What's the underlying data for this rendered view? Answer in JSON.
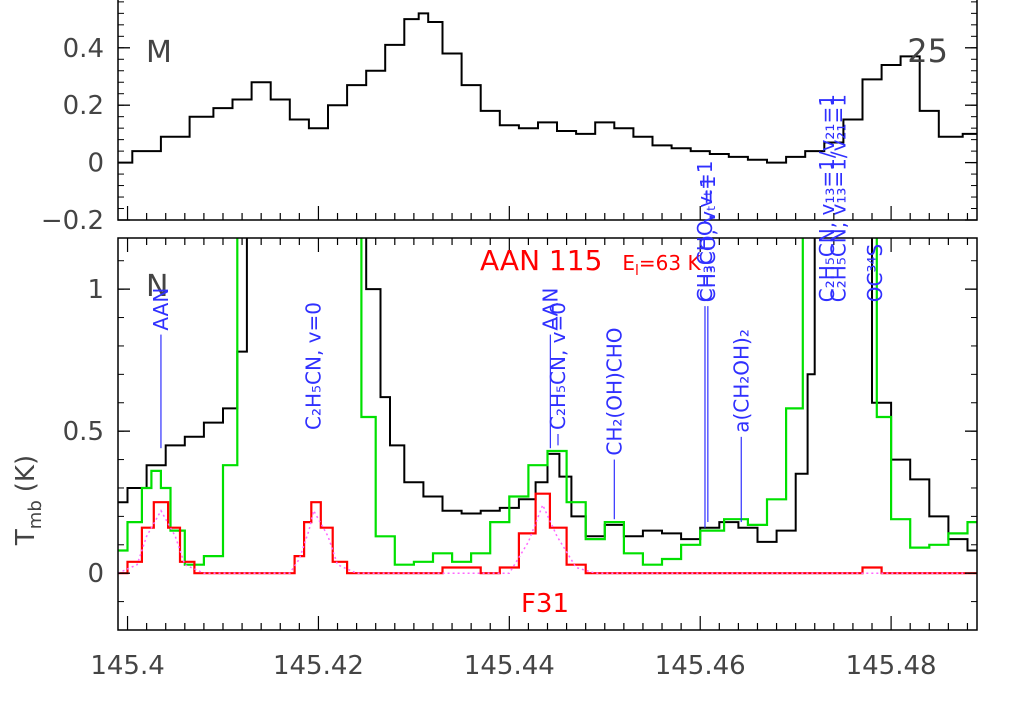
{
  "chart_data": [
    {
      "panel": "M",
      "type": "line",
      "panel_label": "M",
      "panel_number": "25",
      "xlim": [
        145.399,
        145.489
      ],
      "ylim": [
        -0.2,
        0.57
      ],
      "yticks": [
        -0.2,
        0,
        0.2,
        0.4
      ],
      "ytick_labels": [
        "−0.2",
        "0",
        "0.2",
        "0.4"
      ],
      "series": [
        {
          "color": "#000000",
          "style": "histogram",
          "points": [
            [
              145.399,
              0.0
            ],
            [
              145.402,
              0.04
            ],
            [
              145.405,
              0.09
            ],
            [
              145.408,
              0.16
            ],
            [
              145.41,
              0.19
            ],
            [
              145.412,
              0.22
            ],
            [
              145.414,
              0.28
            ],
            [
              145.416,
              0.22
            ],
            [
              145.418,
              0.15
            ],
            [
              145.42,
              0.12
            ],
            [
              145.422,
              0.2
            ],
            [
              145.424,
              0.27
            ],
            [
              145.426,
              0.32
            ],
            [
              145.428,
              0.41
            ],
            [
              145.43,
              0.5
            ],
            [
              145.431,
              0.52
            ],
            [
              145.432,
              0.49
            ],
            [
              145.434,
              0.38
            ],
            [
              145.436,
              0.27
            ],
            [
              145.438,
              0.18
            ],
            [
              145.44,
              0.13
            ],
            [
              145.442,
              0.12
            ],
            [
              145.444,
              0.14
            ],
            [
              145.446,
              0.11
            ],
            [
              145.448,
              0.1
            ],
            [
              145.45,
              0.14
            ],
            [
              145.452,
              0.12
            ],
            [
              145.454,
              0.09
            ],
            [
              145.456,
              0.06
            ],
            [
              145.458,
              0.05
            ],
            [
              145.46,
              0.04
            ],
            [
              145.462,
              0.03
            ],
            [
              145.464,
              0.02
            ],
            [
              145.466,
              0.01
            ],
            [
              145.468,
              0.0
            ],
            [
              145.47,
              0.02
            ],
            [
              145.472,
              0.04
            ],
            [
              145.474,
              0.07
            ],
            [
              145.476,
              0.15
            ],
            [
              145.478,
              0.29
            ],
            [
              145.48,
              0.34
            ],
            [
              145.482,
              0.37
            ],
            [
              145.484,
              0.18
            ],
            [
              145.486,
              0.09
            ],
            [
              145.489,
              0.1
            ]
          ]
        }
      ]
    },
    {
      "panel": "N",
      "type": "line",
      "panel_label": "N",
      "xlabel": "",
      "ylabel": "T",
      "ylabel_sub": "mb",
      "ylabel_unit": "(K)",
      "xlim": [
        145.399,
        145.489
      ],
      "ylim": [
        -0.2,
        1.18
      ],
      "xticks": [
        145.4,
        145.42,
        145.44,
        145.46,
        145.48
      ],
      "xtick_labels": [
        "145.4",
        "145.42",
        "145.44",
        "145.46",
        "145.48"
      ],
      "yticks": [
        0,
        0.5,
        1
      ],
      "ytick_labels": [
        "0",
        "0.5",
        "1"
      ],
      "title": "AAN  115",
      "title_sub": "E",
      "title_sub_sub": "l",
      "title_tail": "=63 K",
      "model_label": "F31",
      "series": [
        {
          "color": "#000000",
          "style": "histogram",
          "points": [
            [
              145.399,
              0.25
            ],
            [
              145.401,
              0.3
            ],
            [
              145.403,
              0.38
            ],
            [
              145.405,
              0.45
            ],
            [
              145.407,
              0.48
            ],
            [
              145.409,
              0.53
            ],
            [
              145.411,
              0.58
            ],
            [
              145.412,
              0.78
            ],
            [
              145.413,
              1.5
            ],
            [
              145.424,
              1.5
            ],
            [
              145.426,
              1.0
            ],
            [
              145.427,
              0.62
            ],
            [
              145.428,
              0.45
            ],
            [
              145.43,
              0.32
            ],
            [
              145.432,
              0.27
            ],
            [
              145.434,
              0.22
            ],
            [
              145.436,
              0.21
            ],
            [
              145.438,
              0.22
            ],
            [
              145.44,
              0.23
            ],
            [
              145.442,
              0.26
            ],
            [
              145.4435,
              0.32
            ],
            [
              145.4445,
              0.42
            ],
            [
              145.446,
              0.34
            ],
            [
              145.447,
              0.2
            ],
            [
              145.449,
              0.13
            ],
            [
              145.451,
              0.17
            ],
            [
              145.453,
              0.13
            ],
            [
              145.455,
              0.15
            ],
            [
              145.457,
              0.14
            ],
            [
              145.459,
              0.12
            ],
            [
              145.461,
              0.16
            ],
            [
              145.463,
              0.18
            ],
            [
              145.465,
              0.16
            ],
            [
              145.467,
              0.11
            ],
            [
              145.469,
              0.15
            ],
            [
              145.471,
              0.35
            ],
            [
              145.4715,
              0.7
            ],
            [
              145.4725,
              1.5
            ],
            [
              145.477,
              1.5
            ],
            [
              145.479,
              0.6
            ],
            [
              145.481,
              0.4
            ],
            [
              145.483,
              0.33
            ],
            [
              145.485,
              0.2
            ],
            [
              145.487,
              0.12
            ],
            [
              145.489,
              0.08
            ]
          ]
        },
        {
          "color": "#00e000",
          "style": "histogram",
          "points": [
            [
              145.399,
              0.08
            ],
            [
              145.401,
              0.18
            ],
            [
              145.402,
              0.3
            ],
            [
              145.403,
              0.36
            ],
            [
              145.404,
              0.3
            ],
            [
              145.405,
              0.15
            ],
            [
              145.407,
              0.03
            ],
            [
              145.409,
              0.06
            ],
            [
              145.411,
              0.38
            ],
            [
              145.412,
              1.5
            ],
            [
              145.424,
              1.5
            ],
            [
              145.425,
              0.55
            ],
            [
              145.427,
              0.13
            ],
            [
              145.429,
              0.03
            ],
            [
              145.431,
              0.04
            ],
            [
              145.433,
              0.07
            ],
            [
              145.435,
              0.04
            ],
            [
              145.437,
              0.07
            ],
            [
              145.439,
              0.18
            ],
            [
              145.441,
              0.27
            ],
            [
              145.443,
              0.38
            ],
            [
              145.445,
              0.43
            ],
            [
              145.447,
              0.25
            ],
            [
              145.449,
              0.12
            ],
            [
              145.451,
              0.18
            ],
            [
              145.453,
              0.07
            ],
            [
              145.455,
              0.03
            ],
            [
              145.457,
              0.05
            ],
            [
              145.459,
              0.1
            ],
            [
              145.461,
              0.15
            ],
            [
              145.464,
              0.19
            ],
            [
              145.466,
              0.17
            ],
            [
              145.468,
              0.26
            ],
            [
              145.47,
              0.58
            ],
            [
              145.4715,
              1.5
            ],
            [
              145.478,
              1.5
            ],
            [
              145.479,
              0.55
            ],
            [
              145.481,
              0.19
            ],
            [
              145.483,
              0.09
            ],
            [
              145.485,
              0.1
            ],
            [
              145.487,
              0.14
            ],
            [
              145.489,
              0.18
            ]
          ]
        },
        {
          "color": "#ff0000",
          "style": "histogram",
          "points": [
            [
              145.399,
              0.0
            ],
            [
              145.401,
              0.04
            ],
            [
              145.402,
              0.16
            ],
            [
              145.4035,
              0.25
            ],
            [
              145.405,
              0.16
            ],
            [
              145.406,
              0.04
            ],
            [
              145.408,
              0.0
            ],
            [
              145.417,
              0.0
            ],
            [
              145.418,
              0.06
            ],
            [
              145.419,
              0.18
            ],
            [
              145.4195,
              0.25
            ],
            [
              145.421,
              0.16
            ],
            [
              145.422,
              0.04
            ],
            [
              145.424,
              0.0
            ],
            [
              145.432,
              0.0
            ],
            [
              145.434,
              0.02
            ],
            [
              145.436,
              0.02
            ],
            [
              145.438,
              0.0
            ],
            [
              145.44,
              0.02
            ],
            [
              145.442,
              0.14
            ],
            [
              145.4435,
              0.28
            ],
            [
              145.445,
              0.16
            ],
            [
              145.447,
              0.03
            ],
            [
              145.449,
              0.0
            ],
            [
              145.476,
              0.0
            ],
            [
              145.478,
              0.02
            ],
            [
              145.48,
              0.0
            ],
            [
              145.489,
              0.0
            ]
          ]
        },
        {
          "color": "#ff66ff",
          "style": "dotted",
          "points": [
            [
              145.399,
              0.0
            ],
            [
              145.401,
              0.03
            ],
            [
              145.402,
              0.13
            ],
            [
              145.4035,
              0.22
            ],
            [
              145.405,
              0.13
            ],
            [
              145.406,
              0.03
            ],
            [
              145.408,
              0.0
            ],
            [
              145.417,
              0.0
            ],
            [
              145.418,
              0.05
            ],
            [
              145.419,
              0.15
            ],
            [
              145.4195,
              0.22
            ],
            [
              145.421,
              0.13
            ],
            [
              145.422,
              0.03
            ],
            [
              145.424,
              0.0
            ],
            [
              145.44,
              0.0
            ],
            [
              145.442,
              0.11
            ],
            [
              145.4435,
              0.24
            ],
            [
              145.445,
              0.13
            ],
            [
              145.447,
              0.02
            ],
            [
              145.449,
              0.0
            ],
            [
              145.489,
              0.0
            ]
          ]
        }
      ],
      "annotations": [
        {
          "text": "AAN",
          "x": 145.4035,
          "y_low": 0.44,
          "y_high": 0.84
        },
        {
          "text": "C₂H₅CN, v=0",
          "x": 145.4195,
          "y_low": null,
          "y_high": 0.49
        },
        {
          "text": "AAN",
          "x": 145.4443,
          "y_low": 0.44,
          "y_high": 0.84
        },
        {
          "text": "C₂H₅CN, v=0",
          "x": 145.4451,
          "y_low": 0.45,
          "y_high": 0.49
        },
        {
          "text": "CH₂(OH)CHO",
          "x": 145.451,
          "y_low": 0.19,
          "y_high": 0.4
        },
        {
          "text": "CH₃CHO, vₜ=1",
          "x": 145.4605,
          "y_low": 0.16,
          "y_high": 0.94
        },
        {
          "text": "CH₃CO, vₜ=1",
          "x": 145.4608,
          "y_low": 0.18,
          "y_high": 0.94
        },
        {
          "text": "a(CH₂OH)₂",
          "x": 145.4643,
          "y_low": 0.18,
          "y_high": 0.48
        },
        {
          "text": "C₂H₅CN, v₁₃=1/v₂₁=1",
          "x": 145.4733,
          "y_low": null,
          "y_high": 0.94
        },
        {
          "text": "C₂H₅CN, v₁₃=1/v₂₁=1",
          "x": 145.4745,
          "y_low": null,
          "y_high": 0.94
        },
        {
          "text": "OC³⁴S",
          "x": 145.4783,
          "y_low": null,
          "y_high": 0.94
        }
      ]
    }
  ]
}
